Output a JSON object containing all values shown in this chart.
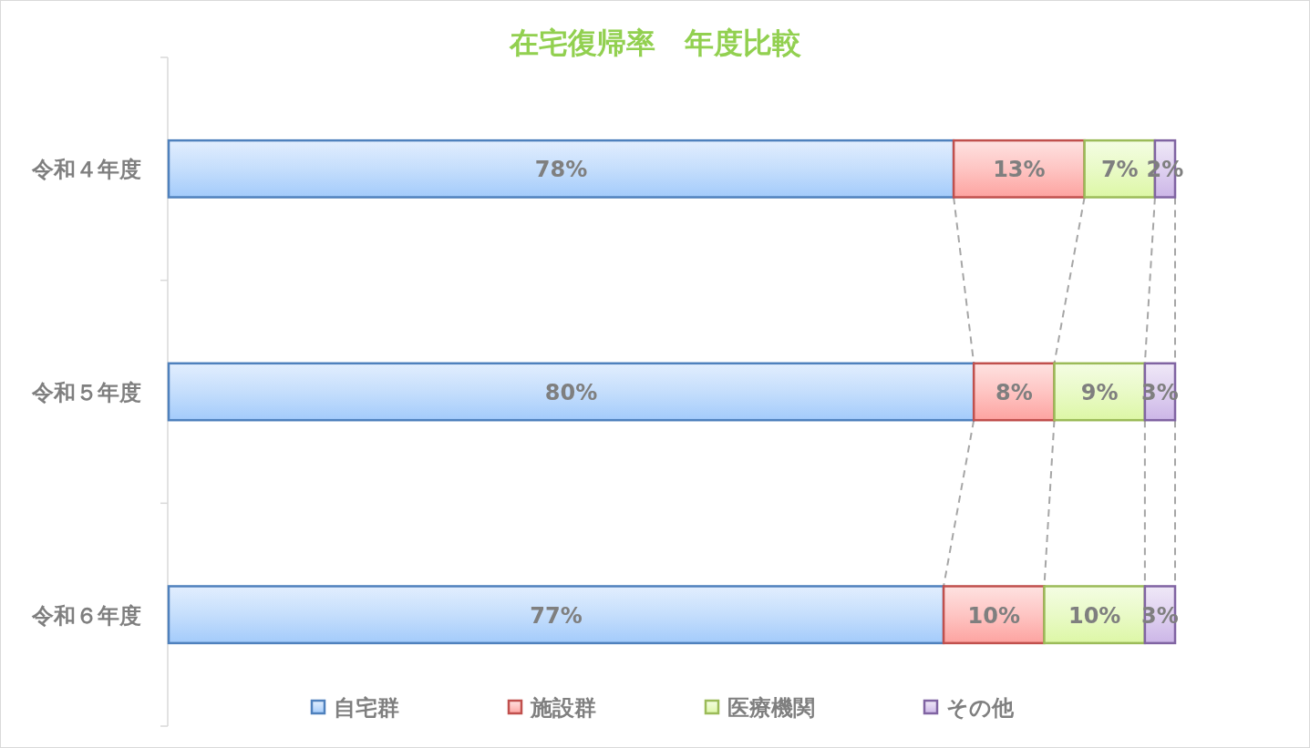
{
  "chart_data": {
    "type": "bar",
    "orientation": "horizontal",
    "stacked": true,
    "title": "在宅復帰率　年度比較",
    "categories": [
      "令和４年度",
      "令和５年度",
      "令和６年度"
    ],
    "series": [
      {
        "name": "自宅群",
        "color": "#4f81bd",
        "values": [
          78,
          80,
          77
        ],
        "value_labels": [
          "78%",
          "80%",
          "77%"
        ]
      },
      {
        "name": "施設群",
        "color": "#c0504d",
        "values": [
          13,
          8,
          10
        ],
        "value_labels": [
          "13%",
          "8%",
          "10%"
        ]
      },
      {
        "name": "医療機関",
        "color": "#9bbb59",
        "values": [
          7,
          9,
          10
        ],
        "value_labels": [
          "7%",
          "9%",
          "10%"
        ]
      },
      {
        "name": "その他",
        "color": "#8064a2",
        "values": [
          2,
          3,
          3
        ],
        "value_labels": [
          "2%",
          "3%",
          "3%"
        ]
      }
    ],
    "xlim": [
      0,
      100
    ],
    "tick_labels": "y",
    "legend": "bottom"
  }
}
